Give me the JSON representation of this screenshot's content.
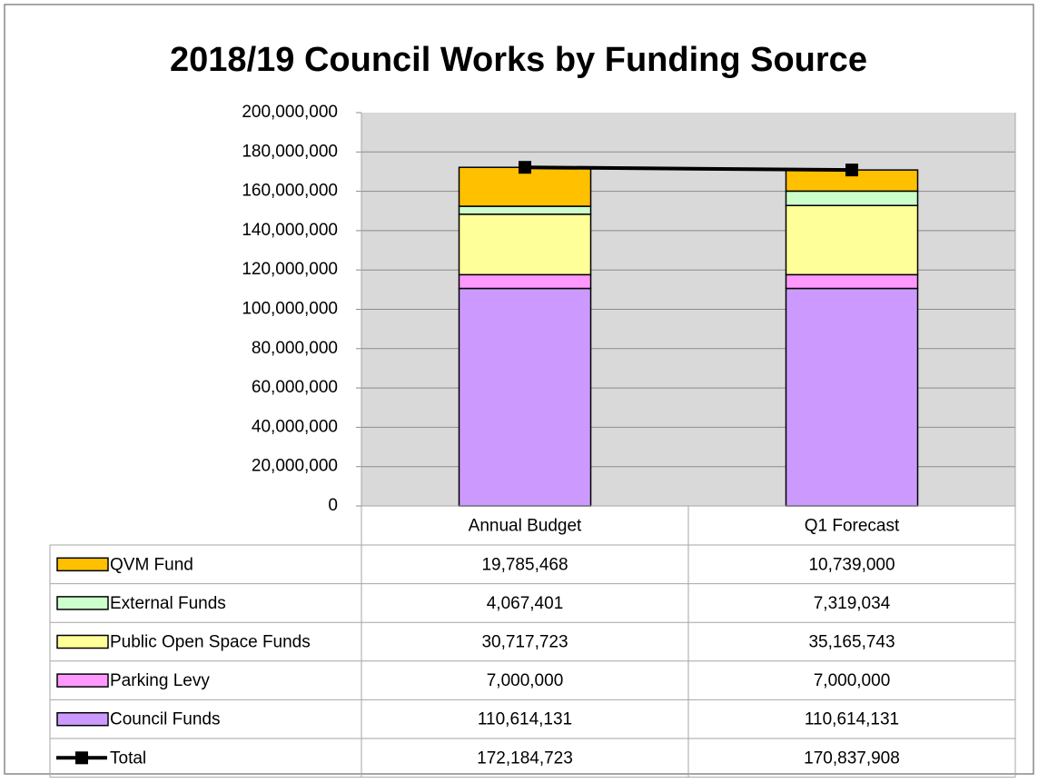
{
  "chart_data": {
    "type": "bar",
    "stacked": true,
    "title": "2018/19 Council Works by Funding Source",
    "categories": [
      "Annual Budget",
      "Q1 Forecast"
    ],
    "series": [
      {
        "name": "QVM Fund",
        "color": "#ffc000",
        "values": [
          19785468,
          10739000
        ],
        "value_labels": [
          "19,785,468",
          "10,739,000"
        ]
      },
      {
        "name": "External Funds",
        "color": "#ccffcc",
        "values": [
          4067401,
          7319034
        ],
        "value_labels": [
          "4,067,401",
          "7,319,034"
        ]
      },
      {
        "name": "Public Open Space Funds",
        "color": "#ffff99",
        "values": [
          30717723,
          35165743
        ],
        "value_labels": [
          "30,717,723",
          "35,165,743"
        ]
      },
      {
        "name": "Parking Levy",
        "color": "#ff99ff",
        "values": [
          7000000,
          7000000
        ],
        "value_labels": [
          "7,000,000",
          "7,000,000"
        ]
      },
      {
        "name": "Council Funds",
        "color": "#cc99ff",
        "values": [
          110614131,
          110614131
        ],
        "value_labels": [
          "110,614,131",
          "110,614,131"
        ]
      },
      {
        "name": "Total",
        "color": "#000000",
        "type": "line",
        "values": [
          172184723,
          170837908
        ],
        "value_labels": [
          "172,184,723",
          "170,837,908"
        ]
      }
    ],
    "ylim": [
      0,
      200000000
    ],
    "yticks": [
      0,
      {
        "value": 20000000,
        "label": "20,000,000"
      },
      {
        "value": 40000000,
        "label": "40,000,000"
      },
      {
        "value": 60000000,
        "label": "60,000,000"
      },
      {
        "value": 80000000,
        "label": "80,000,000"
      },
      {
        "value": 100000000,
        "label": "100,000,000"
      },
      {
        "value": 120000000,
        "label": "120,000,000"
      },
      {
        "value": 140000000,
        "label": "140,000,000"
      },
      {
        "value": 160000000,
        "label": "160,000,000"
      },
      {
        "value": 180000000,
        "label": "180,000,000"
      },
      {
        "value": 200000000,
        "label": "200,000,000"
      }
    ],
    "grid": true
  }
}
